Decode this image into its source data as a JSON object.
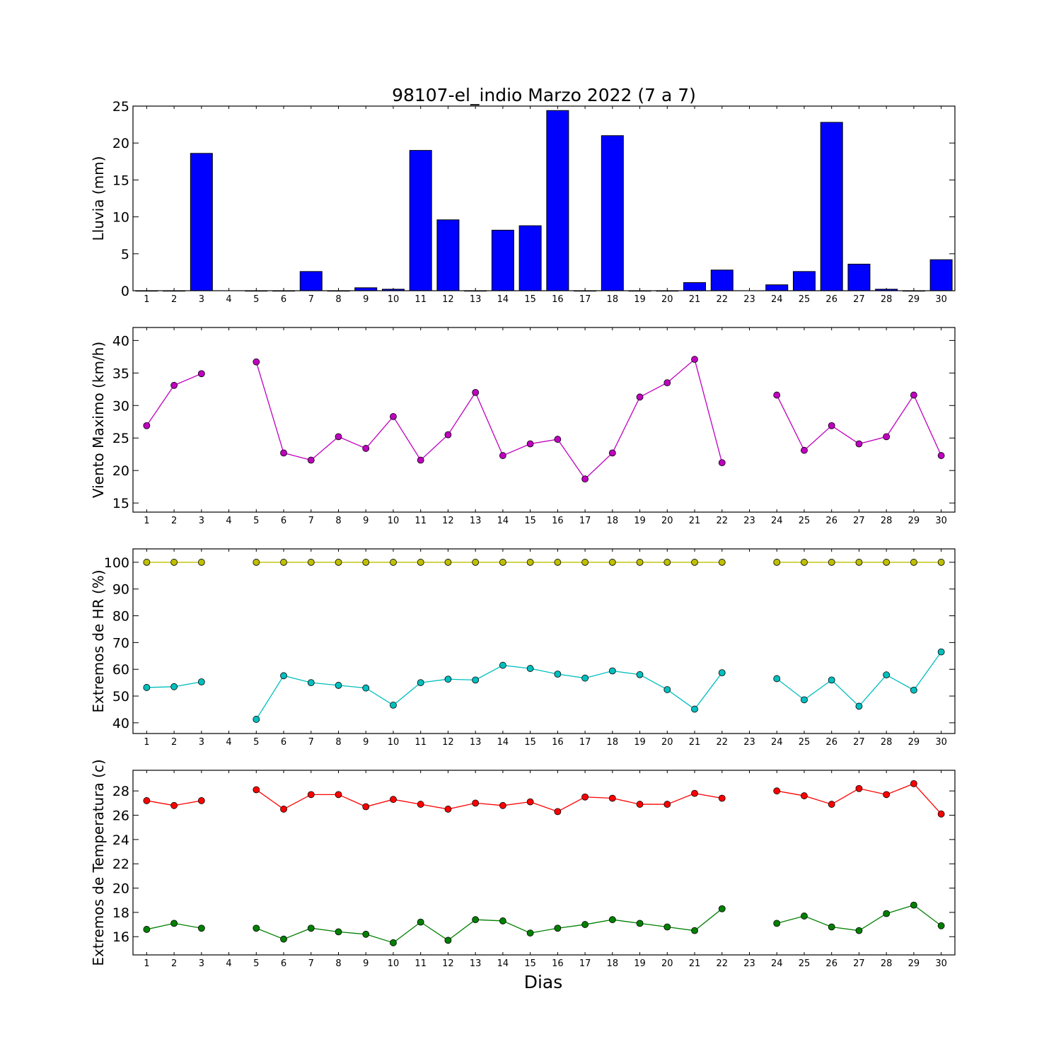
{
  "figure": {
    "title": "98107-el_indio Marzo 2022  (7 a 7)",
    "xlabel": "Dias"
  },
  "chart_data": [
    {
      "type": "bar",
      "ylabel": "Lluvia (mm)",
      "ylim": [
        0,
        25
      ],
      "yticks": [
        0,
        5,
        10,
        15,
        20,
        25
      ],
      "x": [
        1,
        2,
        3,
        4,
        5,
        6,
        7,
        8,
        9,
        10,
        11,
        12,
        13,
        14,
        15,
        16,
        17,
        18,
        19,
        20,
        21,
        22,
        23,
        24,
        25,
        26,
        27,
        28,
        29,
        30
      ],
      "xlim": [
        0.5,
        30.5
      ],
      "color": "#0000ff",
      "series": [
        {
          "values": [
            0,
            0,
            18.6,
            null,
            0,
            0,
            2.6,
            0,
            0.4,
            0.2,
            19.0,
            9.6,
            0,
            8.2,
            8.8,
            24.4,
            0,
            21.0,
            0,
            0,
            1.1,
            2.8,
            null,
            0.8,
            2.6,
            22.8,
            3.6,
            0.2,
            0,
            4.2
          ]
        }
      ]
    },
    {
      "type": "line",
      "ylabel": "Viento Maximo (km/h)",
      "ylim": [
        13.6,
        42
      ],
      "yticks": [
        15,
        20,
        25,
        30,
        35,
        40
      ],
      "x": [
        1,
        2,
        3,
        4,
        5,
        6,
        7,
        8,
        9,
        10,
        11,
        12,
        13,
        14,
        15,
        16,
        17,
        18,
        19,
        20,
        21,
        22,
        23,
        24,
        25,
        26,
        27,
        28,
        29,
        30
      ],
      "xlim": [
        0.5,
        30.5
      ],
      "series": [
        {
          "color": "#bf00bf",
          "values": [
            26.9,
            33.1,
            34.9,
            null,
            36.7,
            22.7,
            21.6,
            25.2,
            23.4,
            28.3,
            21.6,
            25.5,
            32.0,
            22.3,
            24.1,
            24.8,
            18.7,
            22.7,
            31.3,
            33.5,
            37.1,
            21.2,
            null,
            31.6,
            23.1,
            26.9,
            24.1,
            25.2,
            31.6,
            22.3
          ]
        }
      ]
    },
    {
      "type": "line",
      "ylabel": "Extremos de HR (%)",
      "ylim": [
        36,
        105
      ],
      "yticks": [
        40,
        50,
        60,
        70,
        80,
        90,
        100
      ],
      "x": [
        1,
        2,
        3,
        4,
        5,
        6,
        7,
        8,
        9,
        10,
        11,
        12,
        13,
        14,
        15,
        16,
        17,
        18,
        19,
        20,
        21,
        22,
        23,
        24,
        25,
        26,
        27,
        28,
        29,
        30
      ],
      "xlim": [
        0.5,
        30.5
      ],
      "series": [
        {
          "color": "#bfbf00",
          "values": [
            100,
            100,
            100,
            null,
            100,
            100,
            100,
            100,
            100,
            100,
            100,
            100,
            100,
            100,
            100,
            100,
            100,
            100,
            100,
            100,
            100,
            100,
            null,
            100,
            100,
            100,
            100,
            100,
            100,
            100
          ]
        },
        {
          "color": "#00bfbf",
          "values": [
            53.2,
            53.5,
            55.3,
            null,
            41.3,
            57.6,
            55.0,
            54.0,
            53.0,
            46.6,
            55.0,
            56.3,
            56.0,
            61.5,
            60.3,
            58.2,
            56.7,
            59.4,
            58.0,
            52.4,
            45.1,
            58.7,
            null,
            56.5,
            48.6,
            56.0,
            46.2,
            57.9,
            52.2,
            66.5
          ]
        }
      ]
    },
    {
      "type": "line",
      "ylabel": "Extremos de Temperatura (c)",
      "ylim": [
        14.5,
        29.7
      ],
      "yticks": [
        16,
        18,
        20,
        22,
        24,
        26,
        28
      ],
      "x": [
        1,
        2,
        3,
        4,
        5,
        6,
        7,
        8,
        9,
        10,
        11,
        12,
        13,
        14,
        15,
        16,
        17,
        18,
        19,
        20,
        21,
        22,
        23,
        24,
        25,
        26,
        27,
        28,
        29,
        30
      ],
      "xlim": [
        0.5,
        30.5
      ],
      "series": [
        {
          "color": "#ff0000",
          "values": [
            27.2,
            26.8,
            27.2,
            null,
            28.1,
            26.5,
            27.7,
            27.7,
            26.7,
            27.3,
            26.9,
            26.5,
            27.0,
            26.8,
            27.1,
            26.3,
            27.5,
            27.4,
            26.9,
            26.9,
            27.8,
            27.4,
            null,
            28.0,
            27.6,
            26.9,
            28.2,
            27.7,
            28.6,
            26.1
          ]
        },
        {
          "color": "#008000",
          "values": [
            16.6,
            17.1,
            16.7,
            null,
            16.7,
            15.8,
            16.7,
            16.4,
            16.2,
            15.5,
            17.2,
            15.7,
            17.4,
            17.3,
            16.3,
            16.7,
            17.0,
            17.4,
            17.1,
            16.8,
            16.5,
            18.3,
            null,
            17.1,
            17.7,
            16.8,
            16.5,
            17.9,
            18.6,
            16.9
          ]
        }
      ]
    }
  ]
}
